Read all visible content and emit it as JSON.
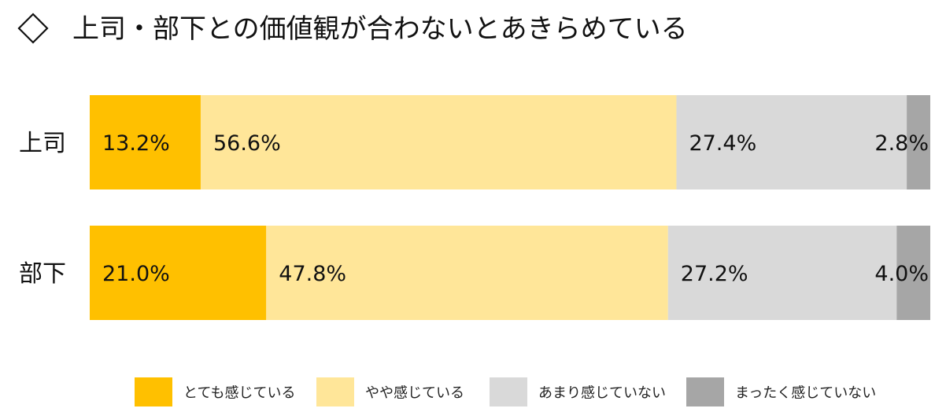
{
  "title": "上司・部下との価値観が合わないとあきらめている",
  "title_icon": "diamond-outline-icon",
  "chart_data": {
    "type": "bar",
    "orientation": "horizontal",
    "stacked": true,
    "percent_stacked": true,
    "categories": [
      "上司",
      "部下"
    ],
    "series": [
      {
        "name": "とても感じている",
        "values": [
          13.2,
          21.0
        ],
        "labels": [
          "13.2%",
          "21.0%"
        ],
        "color": "#FFC000"
      },
      {
        "name": "やや感じている",
        "values": [
          56.6,
          47.8
        ],
        "labels": [
          "56.6%",
          "47.8%"
        ],
        "color": "#FFE699"
      },
      {
        "name": "あまり感じていない",
        "values": [
          27.4,
          27.2
        ],
        "labels": [
          "27.4%",
          "27.2%"
        ],
        "color": "#D9D9D9"
      },
      {
        "name": "まったく感じていない",
        "values": [
          2.8,
          4.0
        ],
        "labels": [
          "2.8%",
          "4.0%"
        ],
        "color": "#A6A6A6"
      }
    ],
    "xlim": [
      0,
      100
    ],
    "grid": false,
    "legend": "bottom"
  }
}
